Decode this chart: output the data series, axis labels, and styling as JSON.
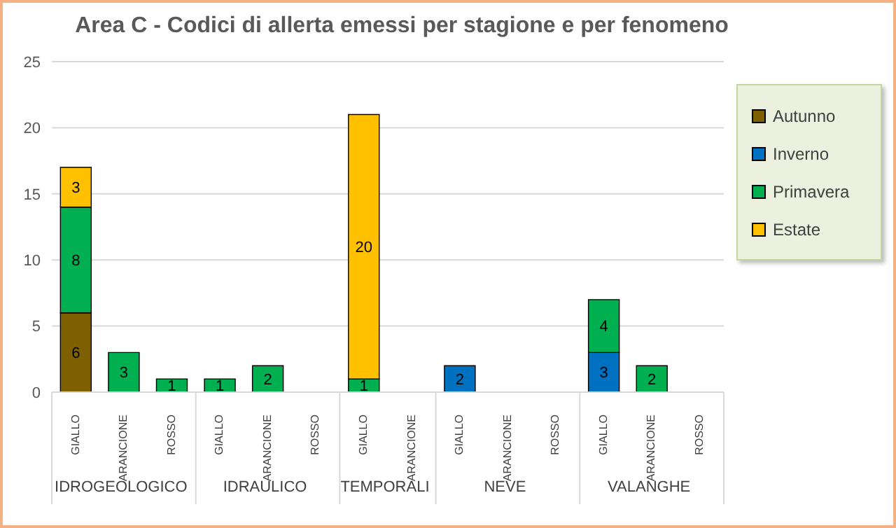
{
  "chart_data": {
    "type": "bar",
    "title": "Area C - Codici di allerta emessi per stagione e per fenomeno",
    "categories": [
      "GIALLO",
      "ARANCIONE",
      "ROSSO",
      "GIALLO",
      "ARANCIONE",
      "ROSSO",
      "GIALLO",
      "ARANCIONE",
      "GIALLO",
      "ARANCIONE",
      "ROSSO",
      "GIALLO",
      "ARANCIONE",
      "ROSSO"
    ],
    "annotations": [
      "IDROGEOLOGICO",
      "IDRAULICO",
      "TEMPORALI",
      "NEVE",
      "VALANGHE"
    ],
    "series": [
      {
        "name": "Autunno",
        "color": "#7f6000",
        "values": [
          6,
          null,
          null,
          null,
          null,
          null,
          null,
          null,
          null,
          null,
          null,
          null,
          null,
          null
        ]
      },
      {
        "name": "Inverno",
        "color": "#0070c0",
        "values": [
          null,
          null,
          null,
          null,
          null,
          null,
          null,
          null,
          2,
          null,
          null,
          3,
          null,
          null
        ]
      },
      {
        "name": "Primavera",
        "color": "#00b050",
        "values": [
          8,
          3,
          1,
          1,
          2,
          null,
          1,
          null,
          null,
          null,
          null,
          4,
          2,
          null
        ]
      },
      {
        "name": "Estate",
        "color": "#ffc000",
        "values": [
          3,
          null,
          null,
          null,
          null,
          null,
          20,
          null,
          null,
          null,
          null,
          null,
          null,
          null
        ]
      }
    ],
    "stacked": true,
    "ylim": [
      0,
      25
    ],
    "yticks": [
      0,
      5,
      10,
      15,
      20,
      25
    ],
    "grid": "y",
    "legend": "top right",
    "data_labels": true
  }
}
